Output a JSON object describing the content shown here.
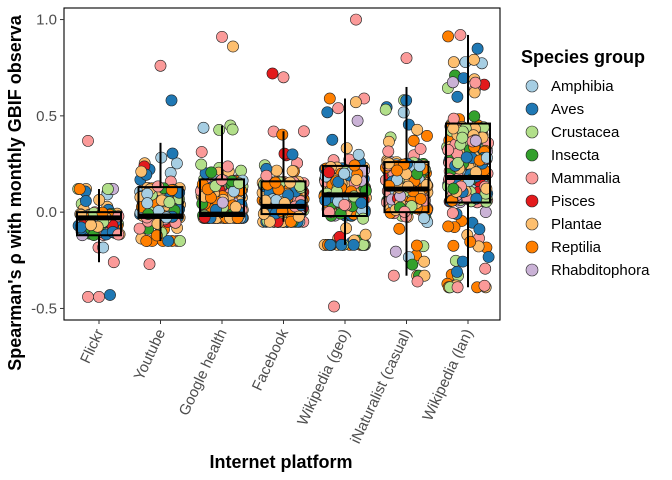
{
  "chart_data": {
    "type": "box-jitter",
    "xlabel": "Internet platform",
    "ylabel": "Spearman's ρ with monthly GBIF observa",
    "ylim": [
      -0.56,
      1.06
    ],
    "yticks": [
      -0.5,
      0.0,
      0.5,
      1.0
    ],
    "ytick_labels": [
      "-0.5",
      "0.0",
      "0.5",
      "1.0"
    ],
    "categories": [
      "Flickr",
      "Youtube",
      "Google health",
      "Facebook",
      "Wikipedia (geo)",
      "iNaturalist (casual)",
      "Wikipedia (lan)"
    ],
    "boxes": [
      {
        "q1": -0.12,
        "median": -0.03,
        "q3": 0.0,
        "whisker_low": -0.26,
        "whisker_high": 0.12
      },
      {
        "q1": -0.03,
        "median": -0.02,
        "q3": 0.13,
        "whisker_low": -0.15,
        "whisker_high": 0.36
      },
      {
        "q1": -0.02,
        "median": -0.01,
        "q3": 0.17,
        "whisker_low": -0.03,
        "whisker_high": 0.45
      },
      {
        "q1": -0.01,
        "median": 0.03,
        "q3": 0.16,
        "whisker_low": -0.05,
        "whisker_high": 0.42
      },
      {
        "q1": -0.02,
        "median": 0.09,
        "q3": 0.24,
        "whisker_low": -0.17,
        "whisker_high": 0.59
      },
      {
        "q1": 0.0,
        "median": 0.12,
        "q3": 0.26,
        "whisker_low": -0.33,
        "whisker_high": 0.65
      },
      {
        "q1": 0.05,
        "median": 0.18,
        "q3": 0.46,
        "whisker_low": -0.39,
        "whisker_high": 0.92
      }
    ],
    "outliers": [
      {
        "cat": 0,
        "y": -0.44,
        "group": "Mammalia"
      },
      {
        "cat": 0,
        "y": -0.44,
        "group": "Mammalia"
      },
      {
        "cat": 0,
        "y": -0.43,
        "group": "Aves"
      },
      {
        "cat": 0,
        "y": 0.37,
        "group": "Mammalia"
      },
      {
        "cat": 1,
        "y": 0.76,
        "group": "Mammalia"
      },
      {
        "cat": 1,
        "y": 0.58,
        "group": "Aves"
      },
      {
        "cat": 1,
        "y": -0.27,
        "group": "Mammalia"
      },
      {
        "cat": 2,
        "y": 0.91,
        "group": "Mammalia"
      },
      {
        "cat": 2,
        "y": 0.86,
        "group": "Plantae"
      },
      {
        "cat": 3,
        "y": 0.72,
        "group": "Pisces"
      },
      {
        "cat": 3,
        "y": 0.7,
        "group": "Mammalia"
      },
      {
        "cat": 4,
        "y": 1.0,
        "group": "Mammalia"
      },
      {
        "cat": 4,
        "y": -0.49,
        "group": "Mammalia"
      },
      {
        "cat": 5,
        "y": 0.8,
        "group": "Mammalia"
      },
      {
        "cat": 5,
        "y": -0.36,
        "group": "Mammalia"
      },
      {
        "cat": 6,
        "y": -0.31,
        "group": "Aves"
      }
    ],
    "legend": {
      "title": "Species group",
      "position": "right",
      "items": [
        {
          "name": "Amphibia",
          "color": "#a6cee3"
        },
        {
          "name": "Aves",
          "color": "#1f78b4"
        },
        {
          "name": "Crustacea",
          "color": "#b2df8a"
        },
        {
          "name": "Insecta",
          "color": "#33a02c"
        },
        {
          "name": "Mammalia",
          "color": "#fb9a99"
        },
        {
          "name": "Pisces",
          "color": "#e31a1c"
        },
        {
          "name": "Plantae",
          "color": "#fdbf6f"
        },
        {
          "name": "Reptilia",
          "color": "#ff7f00"
        },
        {
          "name": "Rhabditophora",
          "color": "#cab2d6"
        }
      ]
    },
    "grid": false
  }
}
